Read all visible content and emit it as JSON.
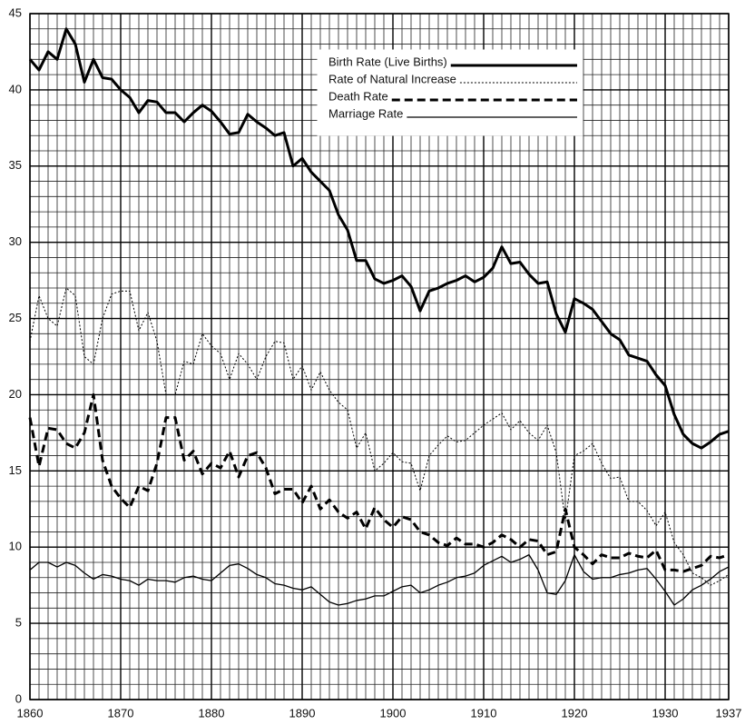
{
  "chart_data": {
    "type": "line",
    "x": [
      1860,
      1861,
      1862,
      1863,
      1864,
      1865,
      1866,
      1867,
      1868,
      1869,
      1870,
      1871,
      1872,
      1873,
      1874,
      1875,
      1876,
      1877,
      1878,
      1879,
      1880,
      1881,
      1882,
      1883,
      1884,
      1885,
      1886,
      1887,
      1888,
      1889,
      1890,
      1891,
      1892,
      1893,
      1894,
      1895,
      1896,
      1897,
      1898,
      1899,
      1900,
      1901,
      1902,
      1903,
      1904,
      1905,
      1906,
      1907,
      1908,
      1909,
      1910,
      1911,
      1912,
      1913,
      1914,
      1915,
      1916,
      1917,
      1918,
      1919,
      1920,
      1921,
      1922,
      1923,
      1924,
      1925,
      1926,
      1927,
      1928,
      1929,
      1930,
      1931,
      1932,
      1933,
      1934,
      1935,
      1936,
      1937
    ],
    "xlim": [
      1860,
      1937
    ],
    "xticks": [
      1860,
      1870,
      1880,
      1890,
      1900,
      1910,
      1920,
      1930,
      1937
    ],
    "ylim": [
      0,
      45
    ],
    "yticks": [
      0,
      5,
      10,
      15,
      20,
      25,
      30,
      35,
      40,
      45
    ],
    "grid": true,
    "minor_grid": true,
    "legend": "upper right",
    "series": [
      {
        "name": "Birth Rate (Live Births)",
        "color": "#000000",
        "style": "heavy-solid",
        "values": [
          42,
          41.3,
          42.5,
          42,
          44,
          43,
          40.5,
          42,
          40.8,
          40.7,
          40,
          39.5,
          38.5,
          39.3,
          39.2,
          38.5,
          38.5,
          37.9,
          38.5,
          39,
          38.6,
          37.9,
          37.1,
          37.2,
          38.4,
          37.9,
          37.5,
          37,
          37.2,
          35,
          35.5,
          34.6,
          34,
          33.4,
          31.8,
          30.8,
          28.8,
          28.8,
          27.6,
          27.3,
          27.5,
          27.8,
          27.1,
          25.5,
          26.8,
          27,
          27.3,
          27.5,
          27.8,
          27.4,
          27.7,
          28.3,
          29.7,
          28.6,
          28.7,
          27.9,
          27.3,
          27.4,
          25.3,
          24.1,
          26.3,
          26,
          25.6,
          24.8,
          24,
          23.6,
          22.6,
          22.4,
          22.2,
          21.3,
          20.6,
          18.7,
          17.4,
          16.8,
          16.5,
          16.9,
          17.4,
          17.6
        ]
      },
      {
        "name": "Rate of Natural Increase",
        "color": "#000000",
        "style": "light-dotted",
        "values": [
          23.5,
          26.5,
          25,
          24.5,
          27,
          26.5,
          22.5,
          22,
          25,
          26.6,
          26.8,
          26.8,
          24.2,
          25.4,
          23.5,
          20,
          20,
          22.2,
          22,
          24,
          23.2,
          22.7,
          21,
          22.7,
          22,
          21,
          22.5,
          23.5,
          23.4,
          21,
          21.9,
          20.3,
          21.5,
          20.3,
          19.5,
          19,
          16.5,
          17.5,
          15,
          15.5,
          16.2,
          15.6,
          15.5,
          13.7,
          16,
          16.7,
          17.3,
          16.9,
          17,
          17.5,
          18,
          18.4,
          18.8,
          17.7,
          18.3,
          17.5,
          17,
          18,
          16.2,
          11.7,
          16,
          16.3,
          16.8,
          15.5,
          14.5,
          14.6,
          13,
          13,
          12.4,
          11.4,
          12.3,
          10.3,
          9.5,
          8.3,
          8,
          7.5,
          7.8,
          8.2
        ]
      },
      {
        "name": "Death Rate",
        "color": "#000000",
        "style": "heavy-dashed",
        "values": [
          18.5,
          15.3,
          17.8,
          17.7,
          16.8,
          16.5,
          17.5,
          20,
          15.7,
          14,
          13.2,
          12.6,
          14,
          13.7,
          15.5,
          18.5,
          18.5,
          15.7,
          16.3,
          14.8,
          15.5,
          15.2,
          16.3,
          14.6,
          16,
          16.2,
          15.2,
          13.5,
          13.8,
          13.8,
          12.9,
          14,
          12.5,
          13.1,
          12.3,
          11.9,
          12.3,
          11.2,
          12.6,
          11.8,
          11.3,
          12,
          11.8,
          11,
          10.8,
          10.3,
          10.1,
          10.6,
          10.2,
          10.2,
          10,
          10.3,
          10.8,
          10.5,
          10,
          10.5,
          10.4,
          9.5,
          9.7,
          12.5,
          10,
          9.5,
          8.9,
          9.5,
          9.3,
          9.3,
          9.6,
          9.4,
          9.3,
          9.8,
          8.5,
          8.5,
          8.4,
          8.6,
          8.8,
          9.4,
          9.3,
          9.5
        ]
      },
      {
        "name": "Marriage Rate",
        "color": "#000000",
        "style": "light-solid",
        "values": [
          8.5,
          9,
          9,
          8.7,
          9,
          8.8,
          8.3,
          7.9,
          8.2,
          8.1,
          7.9,
          7.8,
          7.5,
          7.9,
          7.8,
          7.8,
          7.7,
          8,
          8.1,
          7.9,
          7.8,
          8.3,
          8.8,
          8.9,
          8.6,
          8.2,
          8,
          7.6,
          7.5,
          7.3,
          7.2,
          7.4,
          6.9,
          6.4,
          6.2,
          6.3,
          6.5,
          6.6,
          6.8,
          6.8,
          7.1,
          7.4,
          7.5,
          7,
          7.2,
          7.5,
          7.7,
          8,
          8.1,
          8.3,
          8.8,
          9.1,
          9.4,
          9,
          9.2,
          9.5,
          8.5,
          7,
          6.9,
          7.8,
          9.5,
          8.4,
          7.9,
          8,
          8,
          8.2,
          8.3,
          8.5,
          8.6,
          7.9,
          7.1,
          6.2,
          6.6,
          7.2,
          7.5,
          7.9,
          8.4,
          8.7
        ]
      }
    ]
  }
}
